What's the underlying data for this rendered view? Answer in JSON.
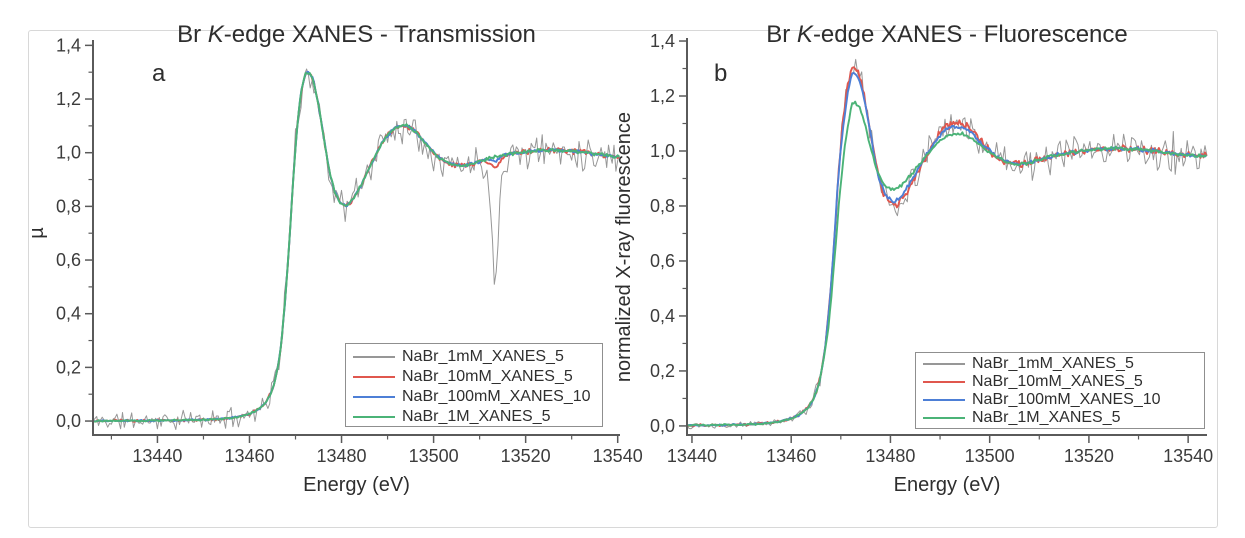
{
  "figure": {
    "background": "#ffffff",
    "border_color": "#d8d8d8"
  },
  "chart_data": [
    {
      "id": "a",
      "type": "line",
      "panel_label": "a",
      "title": "Br K-edge XANES - Transmission",
      "title_parts": [
        "Br ",
        "K",
        "-edge XANES - Transmission"
      ],
      "xlabel": "Energy (eV)",
      "ylabel": "µ",
      "x_range": [
        13426,
        13540.5
      ],
      "x_tick_values": [
        13440,
        13460,
        13480,
        13500,
        13520,
        13540
      ],
      "x_tick_labels": [
        "13440",
        "13460",
        "13480",
        "13500",
        "13520",
        "13540"
      ],
      "x_minor_step": 10,
      "y_range": [
        -0.052,
        1.42
      ],
      "y_tick_values": [
        0,
        0.2,
        0.4,
        0.6,
        0.8,
        1.0,
        1.2,
        1.4
      ],
      "y_tick_labels": [
        "0,0",
        "0,2",
        "0,4",
        "0,6",
        "0,8",
        "1,0",
        "1,2",
        "1,4"
      ],
      "grid": false,
      "legend_position": "inside-bottom-right",
      "base_anchors": [
        [
          13426,
          0.0
        ],
        [
          13444,
          0.003
        ],
        [
          13452,
          0.006
        ],
        [
          13456,
          0.012
        ],
        [
          13459,
          0.022
        ],
        [
          13461,
          0.035
        ],
        [
          13463,
          0.06
        ],
        [
          13464.5,
          0.1
        ],
        [
          13465.5,
          0.15
        ],
        [
          13466.5,
          0.24
        ],
        [
          13467.5,
          0.4
        ],
        [
          13468.5,
          0.63
        ],
        [
          13469.5,
          0.9
        ],
        [
          13470.5,
          1.12
        ],
        [
          13471.5,
          1.25
        ],
        [
          13472.5,
          1.3
        ],
        [
          13473.5,
          1.285
        ],
        [
          13474.5,
          1.22
        ],
        [
          13476,
          1.07
        ],
        [
          13477,
          0.965
        ],
        [
          13478,
          0.885
        ],
        [
          13479,
          0.835
        ],
        [
          13480,
          0.808
        ],
        [
          13481,
          0.803
        ],
        [
          13482,
          0.818
        ],
        [
          13484,
          0.872
        ],
        [
          13486,
          0.94
        ],
        [
          13488,
          1.01
        ],
        [
          13490,
          1.065
        ],
        [
          13492,
          1.095
        ],
        [
          13494,
          1.1
        ],
        [
          13496,
          1.078
        ],
        [
          13498,
          1.04
        ],
        [
          13500,
          1.002
        ],
        [
          13502,
          0.973
        ],
        [
          13504,
          0.957
        ],
        [
          13506,
          0.953
        ],
        [
          13508,
          0.958
        ],
        [
          13510,
          0.968
        ],
        [
          13513,
          0.983
        ],
        [
          13516,
          0.993
        ],
        [
          13520,
          1.003
        ],
        [
          13524,
          1.01
        ],
        [
          13528,
          1.008
        ],
        [
          13532,
          1.002
        ],
        [
          13536,
          0.993
        ],
        [
          13540,
          0.985
        ],
        [
          13544,
          0.982
        ]
      ],
      "series": [
        {
          "name": "NaBr_1mM_XANES_5",
          "color": "#979797",
          "width": 1,
          "noise": {
            "pre": 0.024,
            "post": 0.042,
            "ramp": 0,
            "seed": 11
          },
          "dip": {
            "center": 13513.3,
            "depth": 0.45,
            "sigma": 0.75
          }
        },
        {
          "name": "NaBr_10mM_XANES_5",
          "color": "#e0574e",
          "width": 1.9,
          "noise": {
            "pre": 0.003,
            "post": 0.006,
            "ramp": 0,
            "seed": 23
          },
          "dip": {
            "center": 13513.3,
            "depth": 0.038,
            "sigma": 1.0
          }
        },
        {
          "name": "NaBr_100mM_XANES_10",
          "color": "#4d7fd6",
          "width": 1.9,
          "noise": {
            "pre": 0.002,
            "post": 0.004,
            "ramp": 0,
            "seed": 37
          },
          "dip": {
            "center": 13513.3,
            "depth": 0.014,
            "sigma": 1.0
          }
        },
        {
          "name": "NaBr_1M_XANES_5",
          "color": "#4bb377",
          "width": 1.9,
          "noise": {
            "pre": 0.002,
            "post": 0.004,
            "ramp": 0,
            "seed": 51
          }
        }
      ]
    },
    {
      "id": "b",
      "type": "line",
      "panel_label": "b",
      "title": "Br K-edge XANES - Fluorescence",
      "title_parts": [
        "Br ",
        "K",
        "-edge XANES - Fluorescence"
      ],
      "xlabel": "Energy (eV)",
      "ylabel": "normalized X-ray fluorescence",
      "x_range": [
        13439,
        13543.8
      ],
      "x_tick_values": [
        13440,
        13460,
        13480,
        13500,
        13520,
        13540
      ],
      "x_tick_labels": [
        "13440",
        "13460",
        "13480",
        "13500",
        "13520",
        "13540"
      ],
      "x_minor_step": 10,
      "y_range": [
        -0.033,
        1.411
      ],
      "y_tick_values": [
        0,
        0.2,
        0.4,
        0.6,
        0.8,
        1.0,
        1.2,
        1.4
      ],
      "y_tick_labels": [
        "0,0",
        "0,2",
        "0,4",
        "0,6",
        "0,8",
        "1,0",
        "1,2",
        "1,4"
      ],
      "grid": false,
      "legend_position": "inside-bottom-right",
      "base_anchors": [
        [
          13426,
          0.0
        ],
        [
          13444,
          0.003
        ],
        [
          13452,
          0.006
        ],
        [
          13456,
          0.012
        ],
        [
          13459,
          0.022
        ],
        [
          13461,
          0.035
        ],
        [
          13463,
          0.06
        ],
        [
          13464.5,
          0.1
        ],
        [
          13465.5,
          0.15
        ],
        [
          13466.5,
          0.24
        ],
        [
          13467.5,
          0.4
        ],
        [
          13468.5,
          0.63
        ],
        [
          13469.5,
          0.9
        ],
        [
          13470.5,
          1.12
        ],
        [
          13471.5,
          1.25
        ],
        [
          13472.5,
          1.3
        ],
        [
          13473.5,
          1.285
        ],
        [
          13474.5,
          1.22
        ],
        [
          13476,
          1.07
        ],
        [
          13477,
          0.965
        ],
        [
          13478,
          0.885
        ],
        [
          13479,
          0.835
        ],
        [
          13480,
          0.808
        ],
        [
          13481,
          0.803
        ],
        [
          13482,
          0.818
        ],
        [
          13484,
          0.872
        ],
        [
          13486,
          0.94
        ],
        [
          13488,
          1.01
        ],
        [
          13490,
          1.065
        ],
        [
          13492,
          1.095
        ],
        [
          13494,
          1.1
        ],
        [
          13496,
          1.078
        ],
        [
          13498,
          1.04
        ],
        [
          13500,
          1.002
        ],
        [
          13502,
          0.973
        ],
        [
          13504,
          0.957
        ],
        [
          13506,
          0.953
        ],
        [
          13508,
          0.958
        ],
        [
          13510,
          0.968
        ],
        [
          13513,
          0.983
        ],
        [
          13516,
          0.993
        ],
        [
          13520,
          1.003
        ],
        [
          13524,
          1.01
        ],
        [
          13528,
          1.008
        ],
        [
          13532,
          1.002
        ],
        [
          13536,
          0.993
        ],
        [
          13540,
          0.985
        ],
        [
          13544,
          0.982
        ]
      ],
      "series": [
        {
          "name": "NaBr_1mM_XANES_5",
          "color": "#979797",
          "width": 1,
          "noise": {
            "pre": 0.007,
            "post": 0.027,
            "ramp": 0.00035,
            "seed": 13
          }
        },
        {
          "name": "NaBr_10mM_XANES_5",
          "color": "#e0574e",
          "width": 1.9,
          "noise": {
            "pre": 0.003,
            "post": 0.009,
            "ramp": 0,
            "seed": 29
          }
        },
        {
          "name": "NaBr_100mM_XANES_10",
          "color": "#4d7fd6",
          "width": 1.9,
          "noise": {
            "pre": 0.002,
            "post": 0.005,
            "ramp": 0,
            "seed": 41
          },
          "anchors_override": [
            [
              13470.5,
              1.09
            ],
            [
              13471.5,
              1.22
            ],
            [
              13472.5,
              1.283
            ],
            [
              13473.5,
              1.268
            ],
            [
              13474.5,
              1.205
            ],
            [
              13476,
              1.06
            ],
            [
              13477,
              0.955
            ],
            [
              13478,
              0.883
            ],
            [
              13479,
              0.845
            ],
            [
              13480,
              0.824
            ],
            [
              13481,
              0.82
            ],
            [
              13482,
              0.834
            ],
            [
              13484,
              0.884
            ],
            [
              13486,
              0.947
            ],
            [
              13488,
              1.007
            ],
            [
              13490,
              1.057
            ],
            [
              13492,
              1.083
            ],
            [
              13494,
              1.088
            ],
            [
              13496,
              1.068
            ],
            [
              13498,
              1.033
            ]
          ]
        },
        {
          "name": "NaBr_1M_XANES_5",
          "color": "#4bb377",
          "width": 1.9,
          "noise": {
            "pre": 0.002,
            "post": 0.004,
            "ramp": 0,
            "seed": 53
          },
          "anchors_override": [
            [
              13467.5,
              0.36
            ],
            [
              13468.5,
              0.56
            ],
            [
              13469.5,
              0.78
            ],
            [
              13470.5,
              0.97
            ],
            [
              13471.5,
              1.1
            ],
            [
              13472.5,
              1.175
            ],
            [
              13473.5,
              1.168
            ],
            [
              13474.5,
              1.12
            ],
            [
              13476,
              1.015
            ],
            [
              13477,
              0.945
            ],
            [
              13478,
              0.9
            ],
            [
              13479,
              0.875
            ],
            [
              13480,
              0.863
            ],
            [
              13481,
              0.862
            ],
            [
              13482,
              0.872
            ],
            [
              13484,
              0.91
            ],
            [
              13486,
              0.955
            ],
            [
              13488,
              1.0
            ],
            [
              13490,
              1.035
            ],
            [
              13492,
              1.058
            ],
            [
              13494,
              1.062
            ],
            [
              13496,
              1.05
            ],
            [
              13498,
              1.022
            ],
            [
              13500,
              0.995
            ],
            [
              13502,
              0.972
            ]
          ]
        }
      ]
    }
  ]
}
